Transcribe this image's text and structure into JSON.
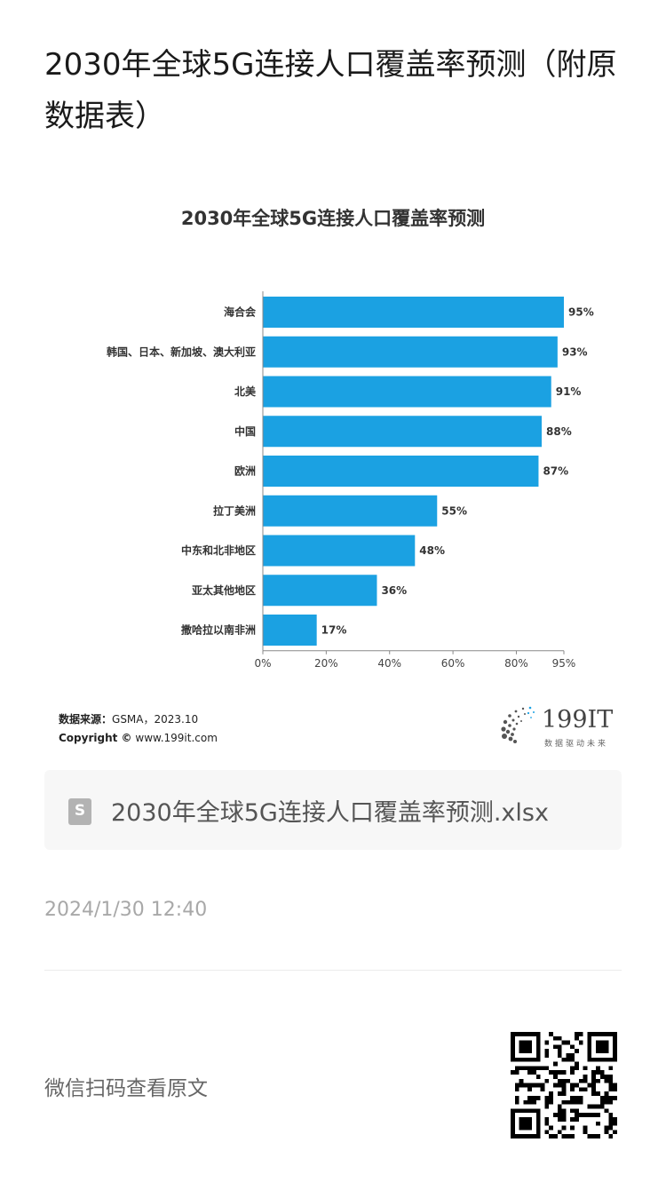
{
  "page": {
    "title": "2030年全球5G连接人口覆盖率预测（附原数据表）"
  },
  "chart_data": {
    "type": "bar",
    "orientation": "horizontal",
    "title": "2030年全球5G连接人口覆盖率预测",
    "categories": [
      "海合会",
      "韩国、日本、新加坡、澳大利亚",
      "北美",
      "中国",
      "欧洲",
      "拉丁美洲",
      "中东和北非地区",
      "亚太其他地区",
      "撒哈拉以南非洲"
    ],
    "values": [
      95,
      93,
      91,
      88,
      87,
      55,
      48,
      36,
      17
    ],
    "data_labels": [
      "95%",
      "93%",
      "91%",
      "88%",
      "87%",
      "55%",
      "48%",
      "36%",
      "17%"
    ],
    "x_ticks": [
      "0%",
      "20%",
      "40%",
      "60%",
      "80%",
      "95%"
    ],
    "x_tick_values": [
      0,
      20,
      40,
      60,
      80,
      95
    ],
    "xlim": [
      0,
      95
    ],
    "grid": false,
    "bar_color": "#1ba1e2"
  },
  "source": {
    "label": "数据来源：",
    "text": "GSMA，2023.10",
    "copyright_label": "Copyright ©",
    "copyright_text": "www.199it.com"
  },
  "brand": {
    "name": "199IT",
    "slogan": "数据驱动未来",
    "icon": "dandelion-logo-icon"
  },
  "attachment": {
    "icon": "spreadsheet-file-icon",
    "icon_letter": "S",
    "file_name": "2030年全球5G连接人口覆盖率预测.xlsx"
  },
  "meta": {
    "timestamp": "2024/1/30 12:40"
  },
  "footer": {
    "scan_text": "微信扫码查看原文",
    "qr_icon": "qr-code-icon"
  }
}
